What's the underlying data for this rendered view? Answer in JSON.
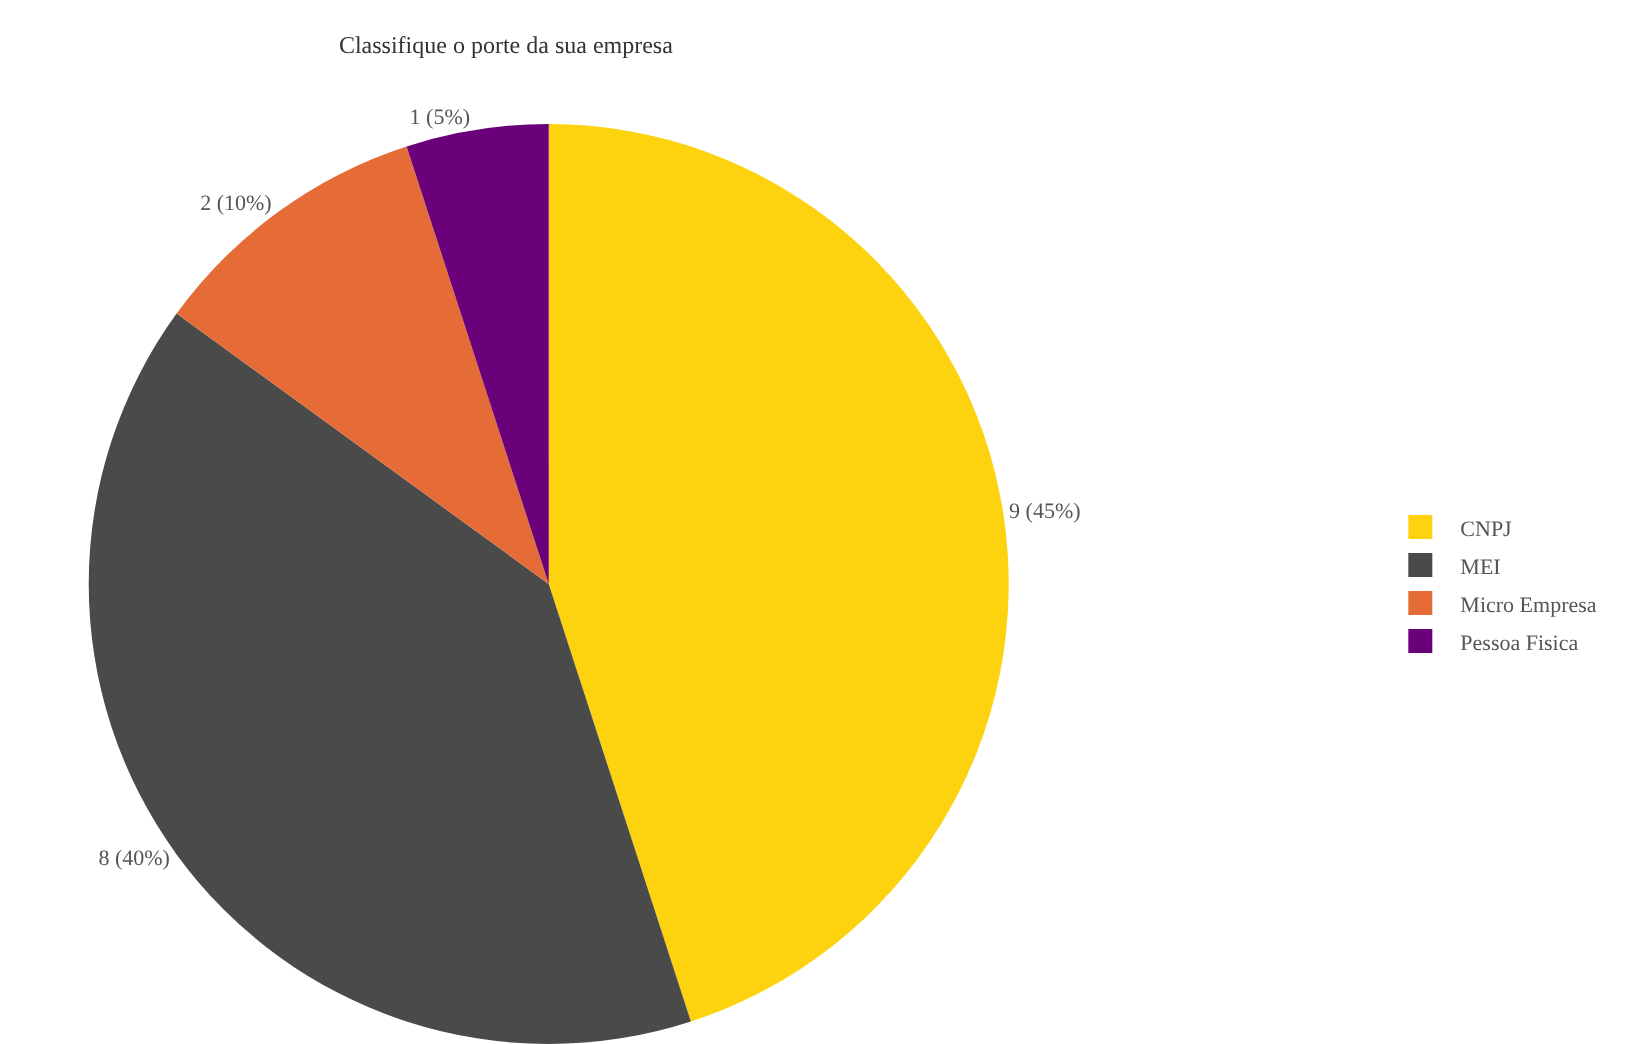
{
  "chart_data": {
    "type": "pie",
    "title": "Classifique o porte da sua empresa",
    "categories": [
      "CNPJ",
      "MEI",
      "Micro Empresa",
      "Pessoa Fisica"
    ],
    "values": [
      9,
      8,
      2,
      1
    ],
    "colors": [
      "#fdd20e",
      "#4a4a4a",
      "#e66c37",
      "#6b007b"
    ],
    "value_labels": [
      "9 (45%)",
      "8 (40%)",
      "2 (10%)",
      "1 (5%)"
    ],
    "legend": "right"
  }
}
